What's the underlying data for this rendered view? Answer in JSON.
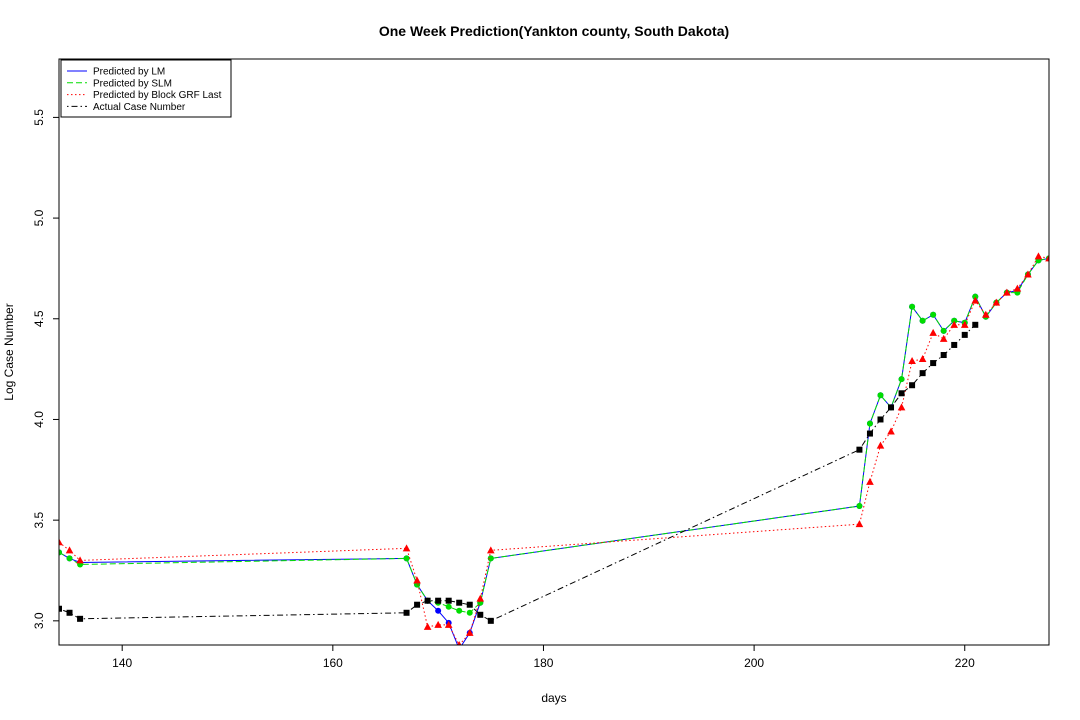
{
  "chart_data": {
    "type": "line",
    "title": "One Week Prediction(Yankton county, South Dakota)",
    "xlabel": "days",
    "ylabel": "Log Case Number",
    "xlim": [
      134,
      228
    ],
    "ylim": [
      2.88,
      5.79
    ],
    "xticks": [
      140,
      160,
      180,
      200,
      220
    ],
    "yticks": [
      3.0,
      3.5,
      4.0,
      4.5,
      5.0,
      5.5
    ],
    "xtick_labels": [
      "140",
      "160",
      "180",
      "200",
      "220"
    ],
    "ytick_labels": [
      "3.0",
      "3.5",
      "4.0",
      "4.5",
      "5.0",
      "5.5"
    ],
    "legend_position": "top-left",
    "grid": false,
    "series": [
      {
        "name": "Predicted by LM",
        "color": "#0000ff",
        "line": "solid",
        "marker": "circle",
        "points": [
          [
            134,
            3.34
          ],
          [
            135,
            3.31
          ],
          [
            136,
            3.29
          ],
          [
            167,
            3.31
          ],
          [
            168,
            3.18
          ],
          [
            169,
            3.1
          ],
          [
            170,
            3.05
          ],
          [
            171,
            2.99
          ],
          [
            172,
            2.86
          ],
          [
            173,
            2.94
          ],
          [
            174,
            3.09
          ],
          [
            175,
            3.31
          ],
          [
            210,
            3.57
          ],
          [
            211,
            3.98
          ],
          [
            212,
            4.12
          ],
          [
            213,
            4.06
          ],
          [
            214,
            4.2
          ],
          [
            215,
            4.56
          ],
          [
            216,
            4.49
          ],
          [
            217,
            4.52
          ],
          [
            218,
            4.44
          ],
          [
            219,
            4.49
          ],
          [
            220,
            4.48
          ],
          [
            221,
            4.61
          ],
          [
            222,
            4.51
          ],
          [
            223,
            4.58
          ],
          [
            224,
            4.63
          ],
          [
            225,
            4.64
          ],
          [
            226,
            4.72
          ],
          [
            227,
            4.79
          ],
          [
            228,
            4.8
          ]
        ]
      },
      {
        "name": "Predicted by SLM",
        "color": "#00dd00",
        "line": "dashed",
        "marker": "circle",
        "points": [
          [
            134,
            3.34
          ],
          [
            135,
            3.31
          ],
          [
            136,
            3.28
          ],
          [
            167,
            3.31
          ],
          [
            168,
            3.18
          ],
          [
            169,
            3.1
          ],
          [
            170,
            3.09
          ],
          [
            171,
            3.07
          ],
          [
            172,
            3.05
          ],
          [
            173,
            3.04
          ],
          [
            174,
            3.09
          ],
          [
            175,
            3.31
          ],
          [
            210,
            3.57
          ],
          [
            211,
            3.98
          ],
          [
            212,
            4.12
          ],
          [
            213,
            4.06
          ],
          [
            214,
            4.2
          ],
          [
            215,
            4.56
          ],
          [
            216,
            4.49
          ],
          [
            217,
            4.52
          ],
          [
            218,
            4.44
          ],
          [
            219,
            4.49
          ],
          [
            220,
            4.48
          ],
          [
            221,
            4.61
          ],
          [
            222,
            4.51
          ],
          [
            223,
            4.58
          ],
          [
            224,
            4.63
          ],
          [
            225,
            4.63
          ],
          [
            226,
            4.72
          ],
          [
            227,
            4.79
          ],
          [
            228,
            4.8
          ]
        ]
      },
      {
        "name": "Predicted by Block GRF Last",
        "color": "#ff0000",
        "line": "dotted",
        "marker": "triangle",
        "points": [
          [
            134,
            3.39
          ],
          [
            135,
            3.35
          ],
          [
            136,
            3.3
          ],
          [
            167,
            3.36
          ],
          [
            168,
            3.2
          ],
          [
            169,
            2.97
          ],
          [
            170,
            2.98
          ],
          [
            171,
            2.98
          ],
          [
            172,
            2.88
          ],
          [
            173,
            2.94
          ],
          [
            174,
            3.11
          ],
          [
            175,
            3.35
          ],
          [
            210,
            3.48
          ],
          [
            211,
            3.69
          ],
          [
            212,
            3.87
          ],
          [
            213,
            3.94
          ],
          [
            214,
            4.06
          ],
          [
            215,
            4.29
          ],
          [
            216,
            4.3
          ],
          [
            217,
            4.43
          ],
          [
            218,
            4.4
          ],
          [
            219,
            4.47
          ],
          [
            220,
            4.47
          ],
          [
            221,
            4.59
          ],
          [
            222,
            4.52
          ],
          [
            223,
            4.58
          ],
          [
            224,
            4.63
          ],
          [
            225,
            4.65
          ],
          [
            226,
            4.72
          ],
          [
            227,
            4.81
          ],
          [
            228,
            4.8
          ]
        ]
      },
      {
        "name": "Actual Case Number",
        "color": "#000000",
        "line": "dotdash",
        "marker": "square",
        "points": [
          [
            134,
            3.06
          ],
          [
            135,
            3.04
          ],
          [
            136,
            3.01
          ],
          [
            167,
            3.04
          ],
          [
            168,
            3.08
          ],
          [
            169,
            3.1
          ],
          [
            170,
            3.1
          ],
          [
            171,
            3.1
          ],
          [
            172,
            3.09
          ],
          [
            173,
            3.08
          ],
          [
            174,
            3.03
          ],
          [
            175,
            3.0
          ],
          [
            210,
            3.85
          ],
          [
            211,
            3.93
          ],
          [
            212,
            4.0
          ],
          [
            213,
            4.06
          ],
          [
            214,
            4.13
          ],
          [
            215,
            4.17
          ],
          [
            216,
            4.23
          ],
          [
            217,
            4.28
          ],
          [
            218,
            4.32
          ],
          [
            219,
            4.37
          ],
          [
            220,
            4.42
          ],
          [
            221,
            4.47
          ]
        ]
      }
    ]
  }
}
